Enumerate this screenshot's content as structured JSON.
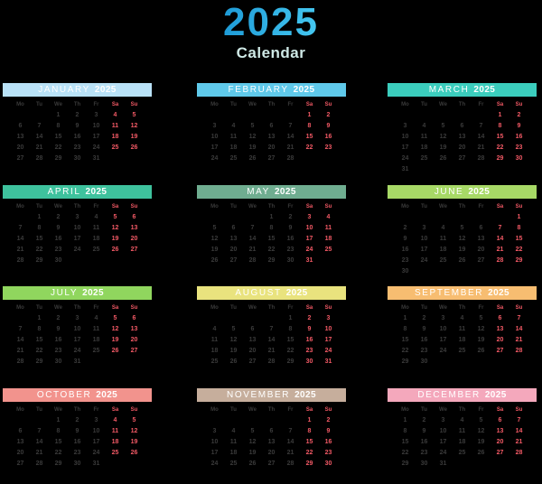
{
  "title": "2025",
  "subtitle": "Calendar",
  "year": "2025",
  "colors": {
    "background": "#000000",
    "title_gradient_start": "#1e9bd7",
    "title_gradient_end": "#45c8f1",
    "subtitle_text": "#cfe9e6",
    "month_header_text": "#ffffff",
    "weekday_text": "#3a3a3a",
    "weekend_text": "#f25965"
  },
  "day_headers": [
    "Mo",
    "Tu",
    "We",
    "Th",
    "Fr",
    "Sa",
    "Su"
  ],
  "months": [
    {
      "name": "JANUARY",
      "color": "#b9e2f7",
      "weeks": [
        [
          "",
          "",
          "1",
          "2",
          "3",
          "4",
          "5"
        ],
        [
          "6",
          "7",
          "8",
          "9",
          "10",
          "11",
          "12"
        ],
        [
          "13",
          "14",
          "15",
          "16",
          "17",
          "18",
          "19"
        ],
        [
          "20",
          "21",
          "22",
          "23",
          "24",
          "25",
          "26"
        ],
        [
          "27",
          "28",
          "29",
          "30",
          "31",
          "",
          ""
        ]
      ]
    },
    {
      "name": "FEBRUARY",
      "color": "#5fc9ea",
      "weeks": [
        [
          "",
          "",
          "",
          "",
          "",
          "1",
          "2"
        ],
        [
          "3",
          "4",
          "5",
          "6",
          "7",
          "8",
          "9"
        ],
        [
          "10",
          "11",
          "12",
          "13",
          "14",
          "15",
          "16"
        ],
        [
          "17",
          "18",
          "19",
          "20",
          "21",
          "22",
          "23"
        ],
        [
          "24",
          "25",
          "26",
          "27",
          "28",
          "",
          ""
        ]
      ]
    },
    {
      "name": "MARCH",
      "color": "#3bcdbd",
      "weeks": [
        [
          "",
          "",
          "",
          "",
          "",
          "1",
          "2"
        ],
        [
          "3",
          "4",
          "5",
          "6",
          "7",
          "8",
          "9"
        ],
        [
          "10",
          "11",
          "12",
          "13",
          "14",
          "15",
          "16"
        ],
        [
          "17",
          "18",
          "19",
          "20",
          "21",
          "22",
          "23"
        ],
        [
          "24",
          "25",
          "26",
          "27",
          "28",
          "29",
          "30"
        ],
        [
          "31",
          "",
          "",
          "",
          "",
          "",
          ""
        ]
      ]
    },
    {
      "name": "APRIL",
      "color": "#3ec29d",
      "weeks": [
        [
          "",
          "1",
          "2",
          "3",
          "4",
          "5",
          "6"
        ],
        [
          "7",
          "8",
          "9",
          "10",
          "11",
          "12",
          "13"
        ],
        [
          "14",
          "15",
          "16",
          "17",
          "18",
          "19",
          "20"
        ],
        [
          "21",
          "22",
          "23",
          "24",
          "25",
          "26",
          "27"
        ],
        [
          "28",
          "29",
          "30",
          "",
          "",
          "",
          ""
        ]
      ]
    },
    {
      "name": "MAY",
      "color": "#6fad90",
      "weeks": [
        [
          "",
          "",
          "",
          "1",
          "2",
          "3",
          "4"
        ],
        [
          "5",
          "6",
          "7",
          "8",
          "9",
          "10",
          "11"
        ],
        [
          "12",
          "13",
          "14",
          "15",
          "16",
          "17",
          "18"
        ],
        [
          "19",
          "20",
          "21",
          "22",
          "23",
          "24",
          "25"
        ],
        [
          "26",
          "27",
          "28",
          "29",
          "30",
          "31",
          ""
        ]
      ]
    },
    {
      "name": "JUNE",
      "color": "#a7d966",
      "weeks": [
        [
          "",
          "",
          "",
          "",
          "",
          "",
          "1"
        ],
        [
          "2",
          "3",
          "4",
          "5",
          "6",
          "7",
          "8"
        ],
        [
          "9",
          "10",
          "11",
          "12",
          "13",
          "14",
          "15"
        ],
        [
          "16",
          "17",
          "18",
          "19",
          "20",
          "21",
          "22"
        ],
        [
          "23",
          "24",
          "25",
          "26",
          "27",
          "28",
          "29"
        ],
        [
          "30",
          "",
          "",
          "",
          "",
          "",
          ""
        ]
      ]
    },
    {
      "name": "JULY",
      "color": "#90d65e",
      "weeks": [
        [
          "",
          "1",
          "2",
          "3",
          "4",
          "5",
          "6"
        ],
        [
          "7",
          "8",
          "9",
          "10",
          "11",
          "12",
          "13"
        ],
        [
          "14",
          "15",
          "16",
          "17",
          "18",
          "19",
          "20"
        ],
        [
          "21",
          "22",
          "23",
          "24",
          "25",
          "26",
          "27"
        ],
        [
          "28",
          "29",
          "30",
          "31",
          "",
          "",
          ""
        ]
      ]
    },
    {
      "name": "AUGUST",
      "color": "#e9e37e",
      "weeks": [
        [
          "",
          "",
          "",
          "",
          "1",
          "2",
          "3"
        ],
        [
          "4",
          "5",
          "6",
          "7",
          "8",
          "9",
          "10"
        ],
        [
          "11",
          "12",
          "13",
          "14",
          "15",
          "16",
          "17"
        ],
        [
          "18",
          "19",
          "20",
          "21",
          "22",
          "23",
          "24"
        ],
        [
          "25",
          "26",
          "27",
          "28",
          "29",
          "30",
          "31"
        ]
      ]
    },
    {
      "name": "SEPTEMBER",
      "color": "#f7bd71",
      "weeks": [
        [
          "1",
          "2",
          "3",
          "4",
          "5",
          "6",
          "7"
        ],
        [
          "8",
          "9",
          "10",
          "11",
          "12",
          "13",
          "14"
        ],
        [
          "15",
          "16",
          "17",
          "18",
          "19",
          "20",
          "21"
        ],
        [
          "22",
          "23",
          "24",
          "25",
          "26",
          "27",
          "28"
        ],
        [
          "29",
          "30",
          "",
          "",
          "",
          "",
          ""
        ]
      ]
    },
    {
      "name": "OCTOBER",
      "color": "#f2938d",
      "weeks": [
        [
          "",
          "",
          "1",
          "2",
          "3",
          "4",
          "5"
        ],
        [
          "6",
          "7",
          "8",
          "9",
          "10",
          "11",
          "12"
        ],
        [
          "13",
          "14",
          "15",
          "16",
          "17",
          "18",
          "19"
        ],
        [
          "20",
          "21",
          "22",
          "23",
          "24",
          "25",
          "26"
        ],
        [
          "27",
          "28",
          "29",
          "30",
          "31",
          "",
          ""
        ]
      ]
    },
    {
      "name": "NOVEMBER",
      "color": "#c6ae9c",
      "weeks": [
        [
          "",
          "",
          "",
          "",
          "",
          "1",
          "2"
        ],
        [
          "3",
          "4",
          "5",
          "6",
          "7",
          "8",
          "9"
        ],
        [
          "10",
          "11",
          "12",
          "13",
          "14",
          "15",
          "16"
        ],
        [
          "17",
          "18",
          "19",
          "20",
          "21",
          "22",
          "23"
        ],
        [
          "24",
          "25",
          "26",
          "27",
          "28",
          "29",
          "30"
        ]
      ]
    },
    {
      "name": "DECEMBER",
      "color": "#f4a8bc",
      "weeks": [
        [
          "1",
          "2",
          "3",
          "4",
          "5",
          "6",
          "7"
        ],
        [
          "8",
          "9",
          "10",
          "11",
          "12",
          "13",
          "14"
        ],
        [
          "15",
          "16",
          "17",
          "18",
          "19",
          "20",
          "21"
        ],
        [
          "22",
          "23",
          "24",
          "25",
          "26",
          "27",
          "28"
        ],
        [
          "29",
          "30",
          "31",
          "",
          "",
          "",
          ""
        ]
      ]
    }
  ],
  "layout": {
    "column_lefts": [
      3,
      218,
      429
    ],
    "row_tops": [
      92,
      205,
      317,
      430
    ]
  }
}
